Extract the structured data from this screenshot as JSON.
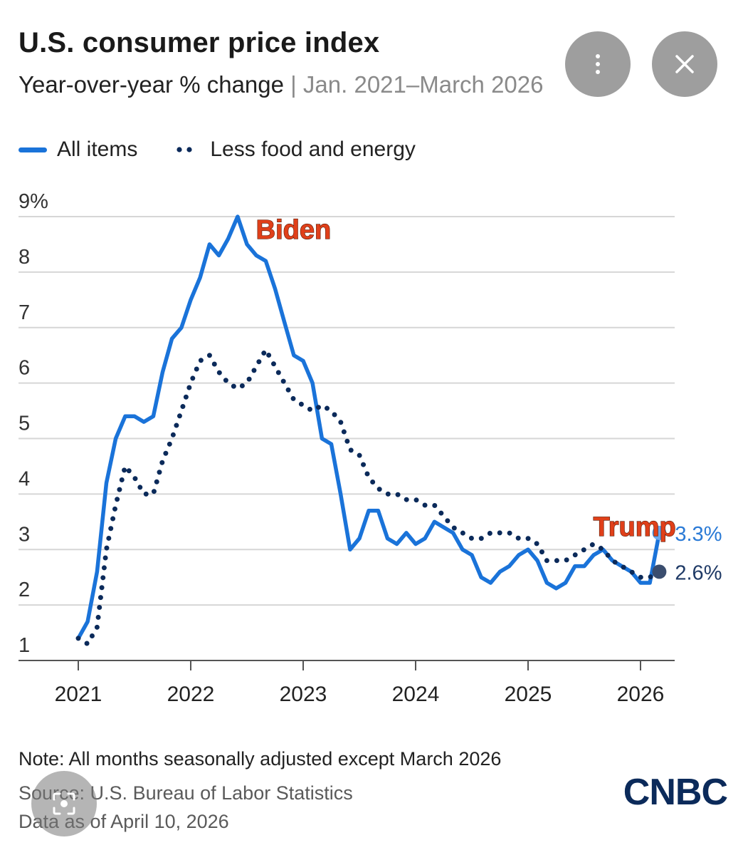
{
  "header": {
    "title": "U.S. consumer price index",
    "subtitle_main": "Year-over-year % change",
    "subtitle_sep": "|",
    "subtitle_range": "Jan. 2021–March 2026"
  },
  "legend": {
    "all_items": "All items",
    "core": "Less food and energy"
  },
  "footer": {
    "note": "Note: All months seasonally adjusted except March 2026",
    "source": "Source: U.S. Bureau of Labor Statistics",
    "as_of": "Data as of April 10, 2026",
    "logo": "CNBC"
  },
  "overlay": {
    "more_icon": "more-vertical-icon",
    "close_icon": "close-icon",
    "lens_icon": "lens-search-icon"
  },
  "colors": {
    "all_items": "#1a73d9",
    "core": "#0b2a5a",
    "annotation": "#e0401a",
    "grid": "#d6d6d6"
  },
  "chart_data": {
    "type": "line",
    "title": "U.S. consumer price index",
    "subtitle": "Year-over-year % change | Jan. 2021–March 2026",
    "ylim": [
      1,
      9
    ],
    "xlim": [
      2021.0,
      2026.5
    ],
    "y_ticks": [
      {
        "value": 9,
        "label": "9%"
      },
      {
        "value": 8,
        "label": "8"
      },
      {
        "value": 7,
        "label": "7"
      },
      {
        "value": 6,
        "label": "6"
      },
      {
        "value": 5,
        "label": "5"
      },
      {
        "value": 4,
        "label": "4"
      },
      {
        "value": 3,
        "label": "3"
      },
      {
        "value": 2,
        "label": "2"
      },
      {
        "value": 1,
        "label": "1"
      }
    ],
    "x_ticks": [
      "2021",
      "2022",
      "2023",
      "2024",
      "2025",
      "2026"
    ],
    "grid": true,
    "legend_position": "top-left",
    "series": [
      {
        "name": "All items",
        "style": "solid",
        "x": [
          2021.0,
          2021.083,
          2021.167,
          2021.25,
          2021.333,
          2021.417,
          2021.5,
          2021.583,
          2021.667,
          2021.75,
          2021.833,
          2021.917,
          2022.0,
          2022.083,
          2022.167,
          2022.25,
          2022.333,
          2022.417,
          2022.5,
          2022.583,
          2022.667,
          2022.75,
          2022.833,
          2022.917,
          2023.0,
          2023.083,
          2023.167,
          2023.25,
          2023.333,
          2023.417,
          2023.5,
          2023.583,
          2023.667,
          2023.75,
          2023.833,
          2023.917,
          2024.0,
          2024.083,
          2024.167,
          2024.25,
          2024.333,
          2024.417,
          2024.5,
          2024.583,
          2024.667,
          2024.75,
          2024.833,
          2024.917,
          2025.0,
          2025.083,
          2025.167,
          2025.25,
          2025.333,
          2025.417,
          2025.5,
          2025.583,
          2025.667,
          2025.75,
          2025.833,
          2025.917,
          2026.0,
          2026.083,
          2026.167
        ],
        "values": [
          1.4,
          1.7,
          2.6,
          4.2,
          5.0,
          5.4,
          5.4,
          5.3,
          5.4,
          6.2,
          6.8,
          7.0,
          7.5,
          7.9,
          8.5,
          8.3,
          8.6,
          9.0,
          8.5,
          8.3,
          8.2,
          7.7,
          7.1,
          6.5,
          6.4,
          6.0,
          5.0,
          4.9,
          4.0,
          3.0,
          3.2,
          3.7,
          3.7,
          3.2,
          3.1,
          3.3,
          3.1,
          3.2,
          3.5,
          3.4,
          3.3,
          3.0,
          2.9,
          2.5,
          2.4,
          2.6,
          2.7,
          2.9,
          3.0,
          2.8,
          2.4,
          2.3,
          2.4,
          2.7,
          2.7,
          2.9,
          3.0,
          2.8,
          2.7,
          2.6,
          2.4,
          2.4,
          3.3
        ],
        "end_label": "3.3%"
      },
      {
        "name": "Less food and energy",
        "style": "dotted",
        "x": [
          2021.0,
          2021.083,
          2021.167,
          2021.25,
          2021.333,
          2021.417,
          2021.5,
          2021.583,
          2021.667,
          2021.75,
          2021.833,
          2021.917,
          2022.0,
          2022.083,
          2022.167,
          2022.25,
          2022.333,
          2022.417,
          2022.5,
          2022.583,
          2022.667,
          2022.75,
          2022.833,
          2022.917,
          2023.0,
          2023.083,
          2023.167,
          2023.25,
          2023.333,
          2023.417,
          2023.5,
          2023.583,
          2023.667,
          2023.75,
          2023.833,
          2023.917,
          2024.0,
          2024.083,
          2024.167,
          2024.25,
          2024.333,
          2024.417,
          2024.5,
          2024.583,
          2024.667,
          2024.75,
          2024.833,
          2024.917,
          2025.0,
          2025.083,
          2025.167,
          2025.25,
          2025.333,
          2025.417,
          2025.5,
          2025.583,
          2025.667,
          2025.75,
          2025.833,
          2025.917,
          2026.0,
          2026.083,
          2026.167
        ],
        "values": [
          1.4,
          1.3,
          1.6,
          3.0,
          3.8,
          4.5,
          4.3,
          4.0,
          4.0,
          4.6,
          5.0,
          5.5,
          6.0,
          6.4,
          6.5,
          6.2,
          6.0,
          5.9,
          6.0,
          6.3,
          6.6,
          6.3,
          6.0,
          5.7,
          5.6,
          5.5,
          5.6,
          5.5,
          5.3,
          4.8,
          4.7,
          4.3,
          4.1,
          4.0,
          4.0,
          3.9,
          3.9,
          3.8,
          3.8,
          3.6,
          3.4,
          3.3,
          3.2,
          3.2,
          3.3,
          3.3,
          3.3,
          3.2,
          3.2,
          3.1,
          2.8,
          2.8,
          2.8,
          2.9,
          3.0,
          3.1,
          3.0,
          2.8,
          2.7,
          2.6,
          2.5,
          2.5,
          2.6
        ],
        "end_label": "2.6%"
      }
    ],
    "annotations": [
      {
        "text": "Biden",
        "x": 2022.58,
        "y": 8.6
      },
      {
        "text": "Trump",
        "x": 2025.58,
        "y": 3.25
      }
    ]
  }
}
